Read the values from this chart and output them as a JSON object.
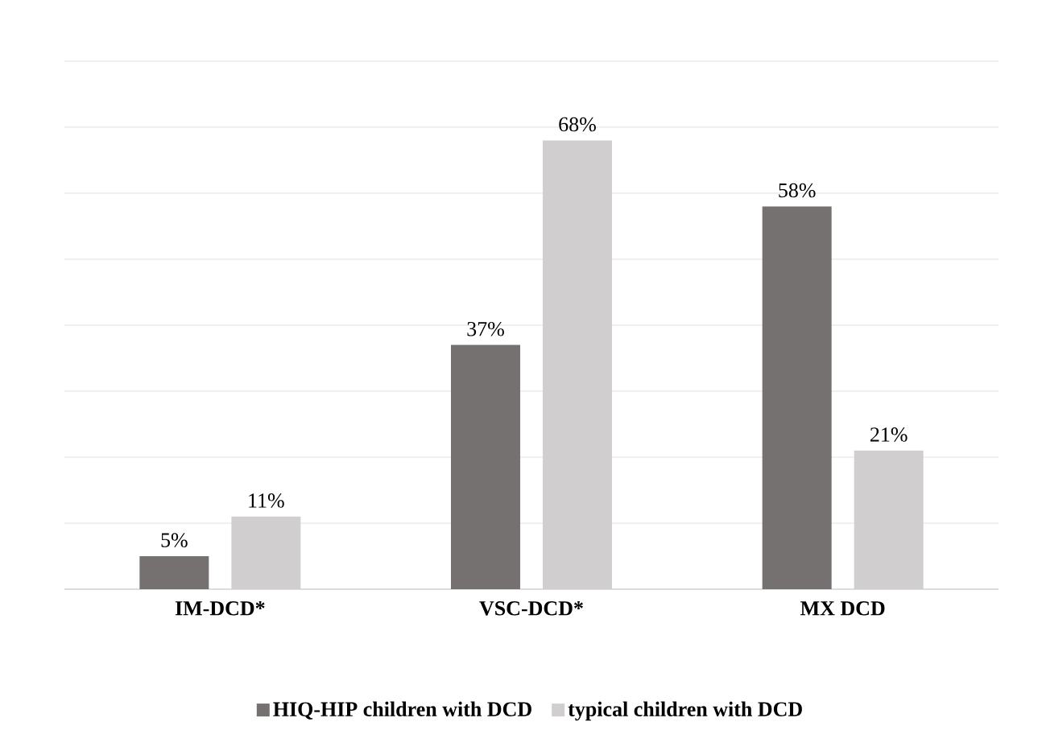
{
  "chart_data": {
    "type": "bar",
    "categories": [
      "IM-DCD*",
      "VSC-DCD*",
      "MX DCD"
    ],
    "series": [
      {
        "name": "HIQ-HIP children with DCD",
        "color": "#767171",
        "values": [
          5,
          37,
          58
        ],
        "value_labels": [
          "5%",
          "37%",
          "58%"
        ]
      },
      {
        "name": "typical children with DCD",
        "color": "#d0cece",
        "values": [
          11,
          68,
          21
        ],
        "value_labels": [
          "11%",
          "68%",
          "21%"
        ]
      }
    ],
    "ylim": [
      0,
      80
    ],
    "yticks": [
      {
        "value": 0,
        "label": null
      },
      {
        "value": 10,
        "label": null
      },
      {
        "value": 20,
        "label": null
      },
      {
        "value": 30,
        "label": null
      },
      {
        "value": 40,
        "label": null
      },
      {
        "value": 50,
        "label": null
      },
      {
        "value": 60,
        "label": null
      },
      {
        "value": 70,
        "label": null
      },
      {
        "value": 80,
        "label": null
      }
    ],
    "grid": "y",
    "legend": "bottom",
    "tick_labels": "x"
  }
}
